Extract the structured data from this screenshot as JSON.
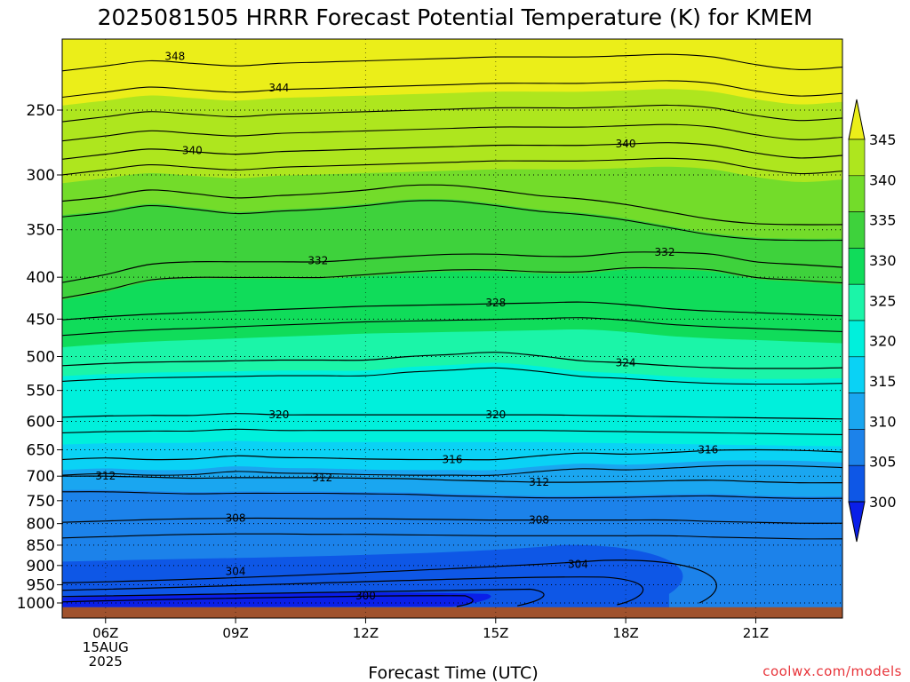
{
  "chart_data": {
    "type": "area",
    "title": "2025081505 HRRR Forecast Potential Temperature (K) for KMEM",
    "xlabel": "Forecast Time (UTC)",
    "ylabel": "",
    "credit": "coolwx.com/models",
    "x_ticks": [
      {
        "x": 6,
        "label": "06Z",
        "sub": [
          "15AUG",
          "2025"
        ]
      },
      {
        "x": 9,
        "label": "09Z",
        "sub": []
      },
      {
        "x": 12,
        "label": "12Z",
        "sub": []
      },
      {
        "x": 15,
        "label": "15Z",
        "sub": []
      },
      {
        "x": 18,
        "label": "18Z",
        "sub": []
      },
      {
        "x": 21,
        "label": "21Z",
        "sub": []
      }
    ],
    "xlim": [
      5,
      23
    ],
    "y_ticks": [
      250,
      300,
      350,
      400,
      450,
      500,
      550,
      600,
      650,
      700,
      750,
      800,
      850,
      900,
      950,
      1000
    ],
    "y_scale": "log",
    "ylim_hPa": [
      200,
      1000
    ],
    "grid": "dotted",
    "colorbar": {
      "labels": [
        "300",
        "305",
        "310",
        "315",
        "320",
        "325",
        "330",
        "335",
        "340",
        "345"
      ],
      "colors": [
        "#0a1fe8",
        "#0e57e6",
        "#1c82ea",
        "#1aa6f0",
        "#0ad2f5",
        "#00f0dc",
        "#1bf5a8",
        "#10dc5a",
        "#3ed23c",
        "#73dc2a",
        "#aee61e",
        "#ebee19"
      ],
      "placement": "right"
    },
    "contour_interval": 4,
    "contour_levels": [
      300,
      304,
      308,
      312,
      316,
      320,
      324,
      328,
      332,
      336,
      340,
      344,
      348
    ],
    "contour_labels": [
      {
        "value": "348",
        "t": 7.6,
        "p": 215
      },
      {
        "value": "344",
        "t": 10.0,
        "p": 235
      },
      {
        "value": "340",
        "t": 8.0,
        "p": 280
      },
      {
        "value": "340",
        "t": 18.0,
        "p": 275
      },
      {
        "value": "332",
        "t": 10.9,
        "p": 382
      },
      {
        "value": "332",
        "t": 18.9,
        "p": 373
      },
      {
        "value": "328",
        "t": 15.0,
        "p": 430
      },
      {
        "value": "324",
        "t": 18.0,
        "p": 509
      },
      {
        "value": "320",
        "t": 10.0,
        "p": 589
      },
      {
        "value": "320",
        "t": 15.0,
        "p": 589
      },
      {
        "value": "316",
        "t": 14.0,
        "p": 668
      },
      {
        "value": "316",
        "t": 19.9,
        "p": 650
      },
      {
        "value": "312",
        "t": 6.0,
        "p": 700
      },
      {
        "value": "312",
        "t": 11.0,
        "p": 703
      },
      {
        "value": "312",
        "t": 16.0,
        "p": 712
      },
      {
        "value": "308",
        "t": 9.0,
        "p": 788
      },
      {
        "value": "308",
        "t": 16.0,
        "p": 792
      },
      {
        "value": "304",
        "t": 9.0,
        "p": 915
      },
      {
        "value": "304",
        "t": 16.9,
        "p": 897
      },
      {
        "value": "300",
        "t": 12.0,
        "p": 980
      }
    ],
    "isentrope_pressure_hPa": {
      "t": [
        5,
        6,
        7,
        8,
        9,
        10,
        11,
        12,
        13,
        14,
        15,
        16,
        17,
        18,
        19,
        20,
        21,
        22,
        23
      ],
      "levels": [
        {
          "theta": 340,
          "p": [
            287,
            283,
            279,
            281,
            283,
            281,
            280,
            279,
            278,
            277,
            276,
            276,
            276,
            275,
            274,
            276,
            282,
            286,
            284
          ]
        },
        {
          "theta": 336,
          "p": [
            323,
            319,
            313,
            316,
            320,
            318,
            316,
            313,
            309,
            309,
            313,
            318,
            321,
            326,
            333,
            340,
            344,
            345,
            345
          ]
        },
        {
          "theta": 332,
          "p": [
            406,
            397,
            386,
            383,
            383,
            383,
            383,
            380,
            377,
            375,
            375,
            377,
            377,
            373,
            373,
            375,
            383,
            386,
            389
          ]
        },
        {
          "theta": 328,
          "p": [
            451,
            447,
            444,
            442,
            440,
            438,
            436,
            434,
            433,
            432,
            431,
            430,
            429,
            432,
            437,
            440,
            442,
            444,
            446
          ]
        },
        {
          "theta": 324,
          "p": [
            513,
            510,
            508,
            507,
            506,
            505,
            505,
            505,
            500,
            497,
            494,
            499,
            506,
            509,
            513,
            516,
            517,
            517,
            516
          ]
        },
        {
          "theta": 320,
          "p": [
            593,
            591,
            590,
            590,
            587,
            589,
            589,
            589,
            589,
            589,
            589,
            589,
            590,
            591,
            592,
            593,
            594,
            595,
            596
          ]
        },
        {
          "theta": 316,
          "p": [
            668,
            665,
            668,
            667,
            661,
            664,
            665,
            667,
            668,
            668,
            668,
            661,
            656,
            658,
            655,
            651,
            650,
            651,
            654
          ]
        },
        {
          "theta": 312,
          "p": [
            700,
            700,
            702,
            704,
            703,
            703,
            703,
            704,
            705,
            708,
            710,
            712,
            712,
            711,
            709,
            708,
            711,
            713,
            713
          ]
        },
        {
          "theta": 308,
          "p": [
            797,
            794,
            791,
            789,
            788,
            788,
            789,
            789,
            790,
            791,
            792,
            792,
            792,
            792,
            792,
            795,
            797,
            799,
            799
          ]
        }
      ]
    },
    "terrain_top_hPa": 1012
  }
}
